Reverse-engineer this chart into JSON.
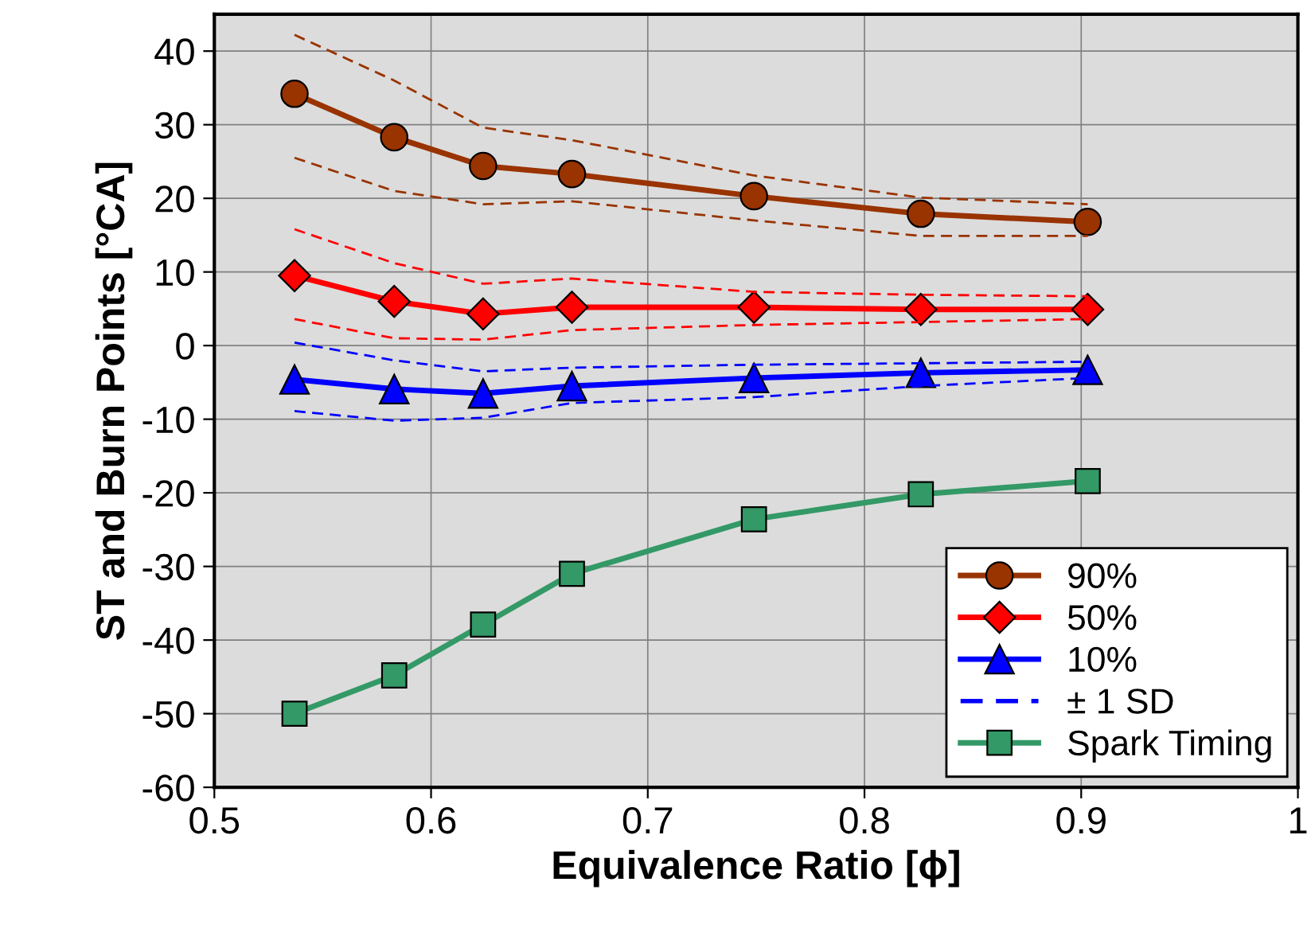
{
  "chart_data": {
    "type": "line",
    "xlabel": "Equivalence Ratio [ϕ]",
    "ylabel": "ST and Burn Points [°CA]",
    "x": [
      0.537,
      0.583,
      0.624,
      0.665,
      0.749,
      0.826,
      0.903
    ],
    "xlim": [
      0.5,
      1.0
    ],
    "xticks": [
      0.5,
      0.6,
      0.7,
      0.8,
      0.9,
      {
        "value": 1.0,
        "label": "1"
      }
    ],
    "ylim": [
      -60,
      45
    ],
    "yticks": [
      -60,
      -50,
      -40,
      -30,
      -20,
      -10,
      0,
      10,
      20,
      30,
      40
    ],
    "grid": true,
    "legend": "bottom right",
    "series": [
      {
        "name": "90%",
        "color": "#993300",
        "marker": "circle",
        "line_style": "solid",
        "values": [
          34.2,
          28.3,
          24.4,
          23.3,
          20.3,
          17.9,
          16.8
        ]
      },
      {
        "name": "50%",
        "color": "#ff0000",
        "marker": "diamond",
        "line_style": "solid",
        "values": [
          9.5,
          6.0,
          4.3,
          5.2,
          5.2,
          4.9,
          4.9
        ]
      },
      {
        "name": "10%",
        "color": "#0000ff",
        "marker": "triangle",
        "line_style": "solid",
        "values": [
          -4.6,
          -5.9,
          -6.5,
          -5.5,
          -4.4,
          -3.7,
          -3.3
        ]
      },
      {
        "name": "± 1 SD",
        "color": "#0000ff",
        "marker": "none",
        "line_style": "dashed",
        "values": [
          0.4,
          -2.0,
          -3.5,
          -3.0,
          -2.6,
          -2.4,
          -2.2
        ]
      },
      {
        "name": "Spark Timing",
        "color": "#339966",
        "marker": "square",
        "line_style": "solid",
        "values": [
          -50.0,
          -44.8,
          -37.9,
          -31.0,
          -23.6,
          -20.2,
          -18.4
        ]
      },
      {
        "color": "#993300",
        "marker": "none",
        "line_style": "dashed",
        "values": [
          42.2,
          36.0,
          29.6,
          27.9,
          23.1,
          20.1,
          19.2
        ]
      },
      {
        "color": "#993300",
        "marker": "none",
        "line_style": "dashed",
        "values": [
          25.5,
          21.0,
          19.2,
          19.6,
          17.0,
          14.9,
          14.9
        ]
      },
      {
        "color": "#ff0000",
        "marker": "none",
        "line_style": "dashed",
        "values": [
          15.8,
          11.2,
          8.4,
          9.1,
          7.3,
          6.9,
          6.7
        ]
      },
      {
        "color": "#ff0000",
        "marker": "none",
        "line_style": "dashed",
        "values": [
          3.6,
          1.0,
          0.8,
          2.1,
          2.8,
          3.2,
          3.6
        ]
      },
      {
        "color": "#0000ff",
        "marker": "none",
        "line_style": "dashed",
        "values": [
          -8.9,
          -10.2,
          -9.8,
          -7.8,
          -7.0,
          -5.5,
          -4.4
        ]
      }
    ]
  }
}
